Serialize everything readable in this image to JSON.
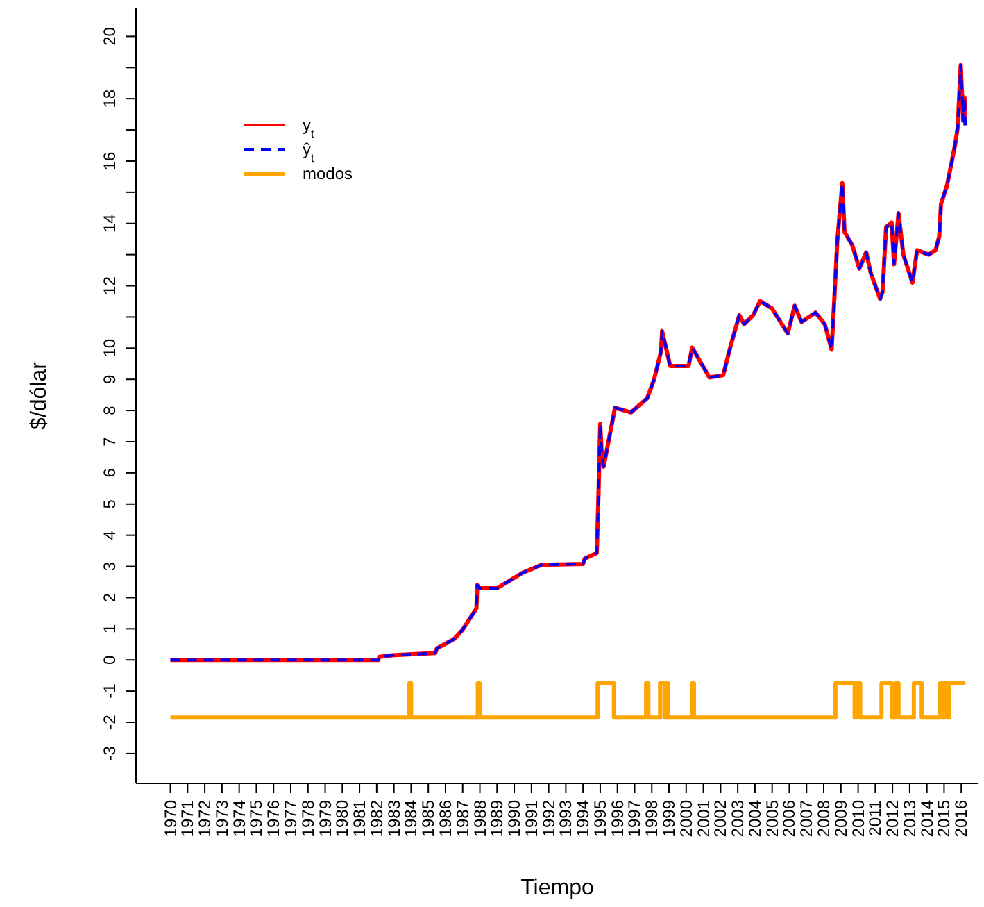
{
  "chart_data": {
    "type": "line",
    "xlabel": "Tiempo",
    "ylabel": "$/dólar",
    "legend": "top left",
    "xlim": [
      1968,
      2017
    ],
    "xticks": [
      1970,
      1971,
      1972,
      1973,
      1974,
      1975,
      1976,
      1977,
      1978,
      1979,
      1980,
      1981,
      1982,
      1983,
      1984,
      1985,
      1986,
      1987,
      1988,
      1989,
      1990,
      1991,
      1992,
      1993,
      1994,
      1995,
      1996,
      1997,
      1998,
      1999,
      2000,
      2001,
      2002,
      2003,
      2004,
      2005,
      2006,
      2007,
      2008,
      2009,
      2010,
      2011,
      2012,
      2013,
      2014,
      2015,
      2016
    ],
    "ylim": [
      -3.96,
      20.9
    ],
    "yticks": [
      -3,
      -2,
      -1,
      0,
      1,
      2,
      3,
      4,
      5,
      6,
      7,
      8,
      9,
      10,
      {
        "value": 11,
        "label": null
      },
      12,
      {
        "value": 13,
        "label": null
      },
      14,
      {
        "value": 15,
        "label": null
      },
      16,
      {
        "value": 17,
        "label": null
      },
      18,
      {
        "value": 19,
        "label": null
      },
      20
    ],
    "x": [
      1970,
      1982.1,
      1982.15,
      1982.9,
      1985.4,
      1985.5,
      1986.5,
      1987,
      1987.8,
      1987.85,
      1987.95,
      1989,
      1990.5,
      1991.6,
      1994,
      1994.1,
      1994.8,
      1994.9,
      1995,
      1995.1,
      1995.2,
      1995.86,
      1996.8,
      1997.73,
      1998.13,
      1998.53,
      1998.6,
      1999.07,
      2000.14,
      2000.35,
      2001.35,
      2002.15,
      2002.56,
      2003.09,
      2003.37,
      2003.9,
      2004.3,
      2004.98,
      2005.91,
      2006.31,
      2006.71,
      2007.52,
      2008.06,
      2008.46,
      2008.68,
      2008.79,
      2009.08,
      2009.21,
      2009.67,
      2010.07,
      2010.47,
      2010.74,
      2011.28,
      2011.42,
      2011.63,
      2011.95,
      2012.09,
      2012.35,
      2012.63,
      2013.16,
      2013.43,
      2014.1,
      2014.5,
      2014.72,
      2014.82,
      2015.17,
      2015.44,
      2015.65,
      2015.79,
      2015.97,
      2016.11,
      2016.19,
      2016.24
    ],
    "series": [
      {
        "name": "y$_{t}$",
        "color": "#ff0000",
        "line_style": "solid",
        "values": [
          0,
          0,
          0.1,
          0.15,
          0.22,
          0.37,
          0.67,
          0.97,
          1.65,
          2.4,
          2.3,
          2.3,
          2.8,
          3.05,
          3.08,
          3.25,
          3.43,
          5.3,
          7.57,
          6.5,
          6.2,
          8.09,
          7.94,
          8.39,
          8.99,
          9.88,
          10.55,
          9.43,
          9.43,
          10.02,
          9.06,
          9.13,
          10.02,
          11.06,
          10.77,
          11.06,
          11.51,
          11.28,
          10.47,
          11.36,
          10.84,
          11.14,
          10.77,
          9.95,
          12.25,
          13.44,
          15.29,
          13.73,
          13.29,
          12.55,
          13.07,
          12.4,
          11.58,
          11.8,
          13.88,
          14.03,
          12.69,
          14.33,
          13.0,
          12.1,
          13.14,
          13.0,
          13.14,
          13.59,
          14.62,
          15.22,
          15.96,
          16.56,
          17.07,
          19.08,
          17.3,
          18.04,
          17.15
        ]
      },
      {
        "name": "ŷ$_{t}$",
        "color": "#0000ff",
        "line_style": "dashed",
        "values": [
          0,
          0,
          0.1,
          0.15,
          0.22,
          0.37,
          0.67,
          0.97,
          1.65,
          2.4,
          2.3,
          2.3,
          2.8,
          3.05,
          3.08,
          3.25,
          3.43,
          5.3,
          7.57,
          6.5,
          6.2,
          8.09,
          7.94,
          8.39,
          8.99,
          9.88,
          10.55,
          9.43,
          9.43,
          10.02,
          9.06,
          9.13,
          10.02,
          11.06,
          10.77,
          11.06,
          11.51,
          11.28,
          10.47,
          11.36,
          10.84,
          11.14,
          10.77,
          9.95,
          12.25,
          13.44,
          15.29,
          13.73,
          13.29,
          12.55,
          13.07,
          12.4,
          11.58,
          11.8,
          13.88,
          14.03,
          12.69,
          14.33,
          13.0,
          12.1,
          13.14,
          13.0,
          13.14,
          13.59,
          14.62,
          15.22,
          15.96,
          16.56,
          17.07,
          19.08,
          17.3,
          18.04,
          17.15
        ]
      },
      {
        "name": "modos",
        "type": "step",
        "color": "#ffa500",
        "line_style": "solid",
        "x": [
          1970,
          1983.9,
          1984.0,
          1987.88,
          1987.98,
          1994.85,
          1995.8,
          1997.67,
          1997.8,
          1998.48,
          1998.74,
          1998.88,
          1998.95,
          2000.35,
          2000.45,
          2008.68,
          2009.8,
          2009.93,
          2010.12,
          2011.36,
          2011.95,
          2012.17,
          2012.35,
          2013.24,
          2013.7,
          2014.77,
          2014.9,
          2015.04,
          2015.17,
          2015.3,
          2016.24
        ],
        "values": [
          -1.85,
          -0.75,
          -1.85,
          -0.75,
          -1.85,
          -0.75,
          -1.85,
          -0.75,
          -1.85,
          -0.75,
          -1.85,
          -0.75,
          -1.85,
          -0.75,
          -1.85,
          -0.75,
          -1.85,
          -0.75,
          -1.85,
          -0.75,
          -1.85,
          -0.75,
          -1.85,
          -0.75,
          -1.85,
          -0.75,
          -1.85,
          -0.75,
          -1.85,
          -0.75,
          -0.75
        ]
      }
    ]
  }
}
